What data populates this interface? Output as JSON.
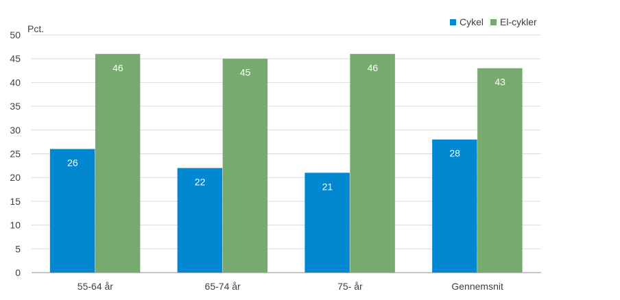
{
  "chart_data": {
    "type": "bar",
    "ylabel": "Pct.",
    "ylim": [
      0,
      50
    ],
    "ytick_step": 5,
    "yticks": [
      "0",
      "5",
      "10",
      "15",
      "20",
      "25",
      "30",
      "35",
      "40",
      "45",
      "50"
    ],
    "categories": [
      "55-64 år",
      "65-74 år",
      "75- år",
      "Gennemsnit"
    ],
    "series": [
      {
        "name": "Cykel",
        "color": "#0288d1",
        "values": [
          26,
          22,
          21,
          28
        ],
        "labels": [
          "26",
          "22",
          "21",
          "28"
        ]
      },
      {
        "name": "El-cykler",
        "color": "#77aa6f",
        "values": [
          46,
          45,
          46,
          43
        ],
        "labels": [
          "46",
          "45",
          "46",
          "43"
        ]
      }
    ],
    "grid": true,
    "legend_position": "top-right"
  }
}
